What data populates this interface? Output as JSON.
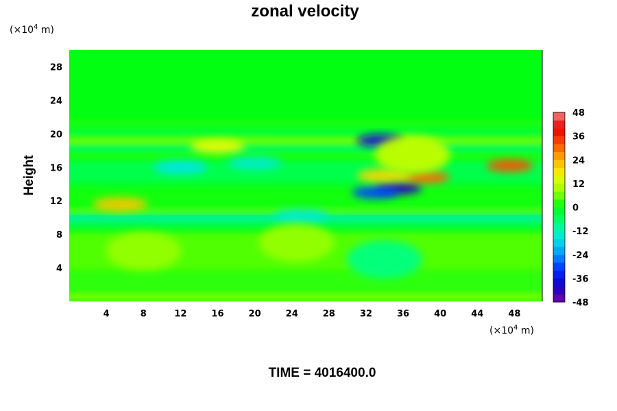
{
  "chart_data": {
    "type": "heatmap",
    "title": "zonal velocity",
    "ylabel": "Height",
    "x_unit": {
      "prefix": "(×10",
      "exp": "4",
      "suffix": " m)"
    },
    "y_unit": {
      "prefix": "(×10",
      "exp": "4",
      "suffix": " m)"
    },
    "xlim": [
      0,
      51
    ],
    "ylim": [
      0,
      30
    ],
    "x_ticks": [
      4,
      8,
      12,
      16,
      20,
      24,
      28,
      32,
      36,
      40,
      44,
      48
    ],
    "y_ticks": [
      4,
      8,
      12,
      16,
      20,
      24,
      28
    ],
    "colorbar": {
      "min": -48,
      "max": 48,
      "step": 4,
      "ticks": [
        48,
        36,
        24,
        12,
        0,
        -12,
        -24,
        -36,
        -48
      ]
    },
    "grid": false,
    "features": [
      {
        "x": 33.5,
        "y": 19.2,
        "value": -38
      },
      {
        "x": 35.5,
        "y": 13.5,
        "value": -42
      },
      {
        "x": 33.0,
        "y": 13.0,
        "value": -30
      },
      {
        "x": 38.5,
        "y": 14.8,
        "value": 30
      },
      {
        "x": 34.0,
        "y": 15.0,
        "value": 20
      },
      {
        "x": 47.5,
        "y": 16.2,
        "value": 32
      },
      {
        "x": 5.5,
        "y": 11.6,
        "value": 22
      },
      {
        "x": 16.0,
        "y": 18.5,
        "value": 16
      },
      {
        "x": 37.0,
        "y": 17.5,
        "value": 12
      },
      {
        "x": 20.0,
        "y": 16.5,
        "value": -14
      },
      {
        "x": 12.0,
        "y": 16.0,
        "value": -16
      },
      {
        "x": 25.0,
        "y": 10.2,
        "value": -14
      },
      {
        "x": 8.0,
        "y": 6.0,
        "value": 8
      },
      {
        "x": 24.5,
        "y": 7.0,
        "value": 8
      },
      {
        "x": 34.0,
        "y": 5.0,
        "value": -8
      }
    ]
  },
  "footer": {
    "time_label": "TIME = 4016400.0"
  }
}
